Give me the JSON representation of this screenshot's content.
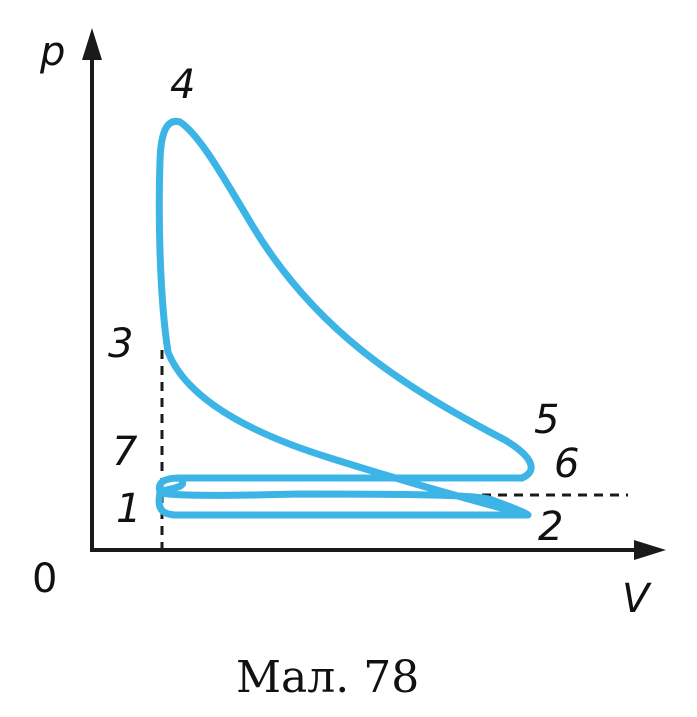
{
  "axes": {
    "y_label": "p",
    "x_label": "V",
    "origin_label": "0"
  },
  "points": {
    "p1": "1",
    "p2": "2",
    "p3": "3",
    "p4": "4",
    "p5": "5",
    "p6": "6",
    "p7": "7"
  },
  "caption": "Мал. 78",
  "colors": {
    "cycle_line": "#3cb4e6",
    "axes": "#1a1a1a"
  }
}
